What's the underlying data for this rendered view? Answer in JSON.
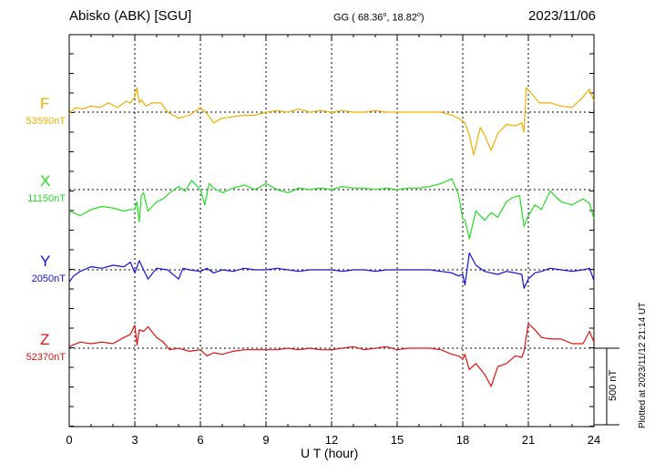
{
  "header": {
    "station": "Abisko (ABK)  [SGU]",
    "coords_prefix": "GG ( 68.36",
    "coords_deg": "o",
    "coords_mid": ",  18.82",
    "coords_suffix": ")",
    "date": "2023/11/06"
  },
  "plotted_note": "Plotted at 2023/11/12 21:14 UT",
  "scale_label": "500 nT",
  "chart_data": {
    "type": "line",
    "xlabel": "U T (hour)",
    "xlim": [
      0,
      24
    ],
    "xticks": [
      0,
      3,
      6,
      9,
      12,
      15,
      18,
      21,
      24
    ],
    "tick_labels": [
      "0",
      "3",
      "6",
      "9",
      "12",
      "15",
      "18",
      "21",
      "24"
    ],
    "grid": true,
    "units": "nT",
    "scale_bar_nT": 500,
    "series": [
      {
        "name": "F",
        "baseline_label": "53590nT",
        "baseline": 53590,
        "color": "#f0b000",
        "x": [
          0,
          0.3,
          0.6,
          1,
          1.4,
          1.8,
          2.2,
          2.6,
          2.8,
          3.0,
          3.1,
          3.2,
          3.3,
          3.5,
          3.8,
          4.2,
          4.5,
          5,
          5.5,
          6,
          6.3,
          6.6,
          7,
          7.5,
          8,
          8.5,
          9,
          9.5,
          10,
          10.5,
          11,
          11.5,
          12,
          12.5,
          13,
          13.5,
          14,
          14.5,
          15,
          15.5,
          16,
          16.5,
          17,
          17.5,
          17.8,
          18,
          18.1,
          18.3,
          18.5,
          18.8,
          19,
          19.3,
          19.6,
          20,
          20.4,
          20.7,
          20.8,
          20.9,
          21.1,
          21.5,
          22,
          22.5,
          23,
          23.5,
          23.8,
          24
        ],
        "values": [
          -10,
          30,
          20,
          40,
          30,
          60,
          30,
          70,
          60,
          100,
          160,
          60,
          80,
          40,
          60,
          60,
          0,
          -40,
          -20,
          30,
          -10,
          -70,
          -40,
          -30,
          -20,
          -20,
          0,
          10,
          0,
          20,
          0,
          10,
          0,
          10,
          0,
          0,
          10,
          0,
          0,
          0,
          0,
          0,
          0,
          -20,
          -40,
          -60,
          -70,
          -150,
          -280,
          -100,
          -150,
          -250,
          -140,
          -80,
          -90,
          -70,
          -130,
          160,
          130,
          60,
          60,
          40,
          30,
          100,
          150,
          70
        ]
      },
      {
        "name": "X",
        "baseline_label": "11150nT",
        "baseline": 11150,
        "color": "#22dd22",
        "x": [
          0,
          0.5,
          1,
          1.5,
          2,
          2.5,
          2.8,
          3.0,
          3.1,
          3.2,
          3.3,
          3.4,
          3.6,
          4,
          4.3,
          4.6,
          5,
          5.3,
          5.6,
          6,
          6.2,
          6.4,
          6.6,
          7,
          7.5,
          8,
          8.5,
          9,
          9.5,
          10,
          10.5,
          11,
          11.5,
          12,
          12.5,
          13,
          13.5,
          14,
          14.5,
          15,
          15.5,
          16,
          16.5,
          17,
          17.5,
          17.8,
          18,
          18.1,
          18.3,
          18.6,
          19,
          19.3,
          19.6,
          20,
          20.3,
          20.6,
          20.8,
          21,
          21.3,
          21.6,
          22,
          22.5,
          23,
          23.5,
          23.8,
          24
        ],
        "values": [
          -140,
          -170,
          -130,
          -110,
          -120,
          -140,
          -130,
          -130,
          -80,
          -210,
          -40,
          -20,
          -140,
          -80,
          -60,
          -20,
          20,
          -10,
          60,
          0,
          -100,
          40,
          10,
          -20,
          10,
          30,
          0,
          40,
          0,
          -20,
          10,
          0,
          10,
          0,
          20,
          10,
          10,
          0,
          10,
          0,
          10,
          10,
          20,
          40,
          70,
          -30,
          -190,
          -200,
          -320,
          -140,
          -200,
          -150,
          -180,
          -80,
          -50,
          -40,
          -240,
          -170,
          -100,
          -130,
          -10,
          -80,
          -100,
          -60,
          -90,
          -190
        ]
      },
      {
        "name": "Y",
        "baseline_label": "2050nT",
        "baseline": 2050,
        "color": "#1010dd",
        "x": [
          0,
          0.2,
          0.5,
          1,
          1.5,
          2,
          2.5,
          2.8,
          3.0,
          3.2,
          3.4,
          3.6,
          4,
          4.5,
          5,
          5.2,
          5.5,
          6,
          6.3,
          6.6,
          7,
          7.5,
          8,
          8.5,
          9,
          9.5,
          10,
          10.5,
          11,
          11.5,
          12,
          12.5,
          13,
          13.5,
          14,
          14.5,
          15,
          15.5,
          16,
          16.5,
          17,
          17.5,
          17.8,
          18,
          18.1,
          18.3,
          18.6,
          19,
          19.3,
          19.6,
          20,
          20.4,
          20.7,
          20.8,
          21,
          21.3,
          21.6,
          22,
          22.5,
          23,
          23.5,
          23.8,
          24
        ],
        "values": [
          -80,
          -40,
          -10,
          20,
          10,
          30,
          20,
          50,
          -20,
          60,
          0,
          -60,
          10,
          0,
          -60,
          10,
          0,
          -10,
          10,
          -20,
          0,
          -10,
          10,
          0,
          0,
          10,
          0,
          -10,
          0,
          0,
          0,
          -10,
          0,
          0,
          -10,
          0,
          0,
          0,
          0,
          0,
          -10,
          -20,
          -40,
          -30,
          -100,
          110,
          30,
          -10,
          -20,
          -30,
          -10,
          -20,
          -30,
          -120,
          -60,
          -20,
          -10,
          10,
          0,
          -10,
          0,
          10,
          -70
        ]
      },
      {
        "name": "Z",
        "baseline_label": "52370nT",
        "baseline": 52370,
        "color": "#e01010",
        "x": [
          0,
          0.5,
          1,
          1.5,
          2,
          2.5,
          2.8,
          3.0,
          3.1,
          3.2,
          3.4,
          3.6,
          4,
          4.3,
          4.6,
          5,
          5.5,
          6,
          6.3,
          6.6,
          7,
          7.5,
          8,
          8.5,
          9,
          9.5,
          10,
          10.5,
          11,
          11.5,
          12,
          12.5,
          13,
          13.5,
          14,
          14.5,
          15,
          15.5,
          16,
          16.5,
          17,
          17.5,
          17.8,
          18,
          18.1,
          18.3,
          18.6,
          19,
          19.3,
          19.6,
          20,
          20.4,
          20.7,
          20.8,
          21,
          21.3,
          21.6,
          22,
          22.5,
          23,
          23.5,
          23.8,
          24
        ],
        "values": [
          10,
          40,
          30,
          40,
          30,
          70,
          90,
          150,
          20,
          120,
          110,
          140,
          70,
          40,
          -10,
          0,
          -20,
          -10,
          -50,
          -30,
          -40,
          -20,
          -10,
          -10,
          -10,
          -10,
          0,
          -10,
          0,
          -10,
          -10,
          0,
          10,
          -10,
          0,
          10,
          -10,
          0,
          0,
          0,
          -10,
          -40,
          -50,
          -70,
          -40,
          -140,
          -100,
          -170,
          -250,
          -120,
          -100,
          -50,
          -60,
          -20,
          160,
          120,
          70,
          60,
          60,
          30,
          30,
          110,
          40
        ]
      }
    ]
  }
}
